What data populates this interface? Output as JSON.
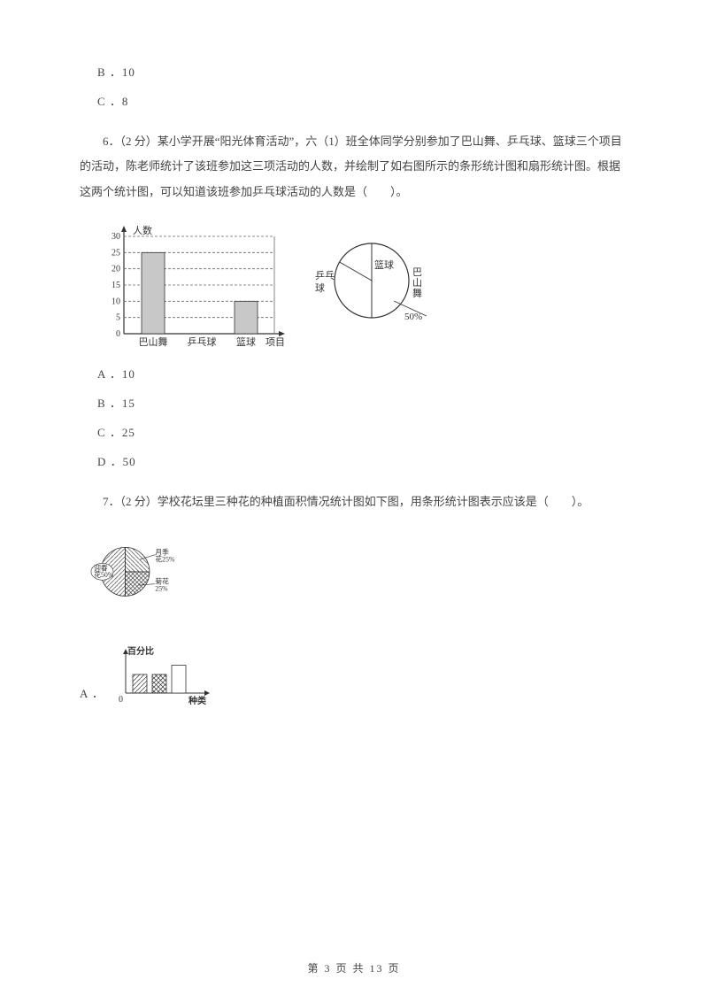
{
  "options_top": {
    "b": "B ．10",
    "c": "C ．8"
  },
  "q6": {
    "text": "6．（2 分）某小学开展“阳光体育活动”，六（1）班全体同学分别参加了巴山舞、乒乓球、篮球三个项目的活动，陈老师统计了该班参加这三项活动的人数，并绘制了如右图所示的条形统计图和扇形统计图。根据这两个统计图，可以知道该班参加乒乓球活动的人数是（　　）。",
    "bar_chart": {
      "y_label": "人数",
      "x_label": "项目",
      "y_ticks": [
        0,
        5,
        10,
        15,
        20,
        25,
        30
      ],
      "categories": [
        "巴山舞",
        "乒乓球",
        "篮球"
      ],
      "values": [
        25,
        null,
        10
      ],
      "bar_fill": "#c8c8c8",
      "axis_color": "#333333",
      "grid_dash": "3,2",
      "border_color": "#666666",
      "label_fontsize": 11,
      "tick_fontsize": 10
    },
    "pie_chart": {
      "sectors": [
        {
          "label": "篮球",
          "angle": 72
        },
        {
          "label": "巴山舞",
          "angle": 180,
          "text": "50%"
        },
        {
          "label": "乒乓球",
          "angle": 108,
          "text": "乒乓球"
        }
      ],
      "stroke": "#333333",
      "fill": "#ffffff",
      "label_fontsize": 11
    },
    "options": {
      "a": "A ．10",
      "b": "B ．15",
      "c": "C ．25",
      "d": "D ．50"
    }
  },
  "q7": {
    "text": "7．（2 分）学校花坛里三种花的种植面积情况统计图如下图，用条形统计图表示应该是（　　）。",
    "pie_chart": {
      "sectors": [
        {
          "label": "迎春花50%",
          "percent": 50,
          "pattern": "diag"
        },
        {
          "label": "月季花25%",
          "percent": 25,
          "pattern": "diag2"
        },
        {
          "label": "菊花25%",
          "percent": 25,
          "pattern": "cross"
        }
      ],
      "stroke": "#333333"
    },
    "option_a": {
      "letter": "A ．",
      "mini_bar": {
        "y_label": "百分比",
        "x_label": "种类",
        "bars": [
          {
            "height": 0.5,
            "pattern": "diag"
          },
          {
            "height": 0.5,
            "pattern": "cross"
          },
          {
            "height": 0.75,
            "pattern": "none"
          }
        ]
      }
    }
  },
  "footer": "第 3 页 共 13 页"
}
